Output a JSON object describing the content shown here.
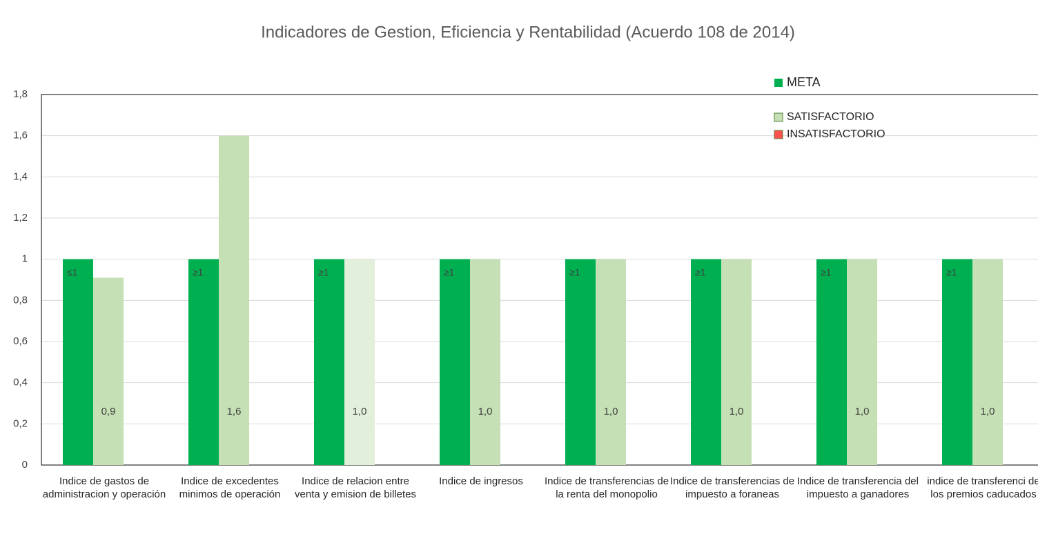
{
  "chart_data": {
    "type": "bar",
    "title": "Indicadores de Gestion, Eficiencia y Rentabilidad (Acuerdo 108 de 2014)",
    "categories": [
      "Indice de gastos de administracion y operación",
      "Indice de excedentes minimos de operación",
      "Indice de relacion entre venta y emision de billetes",
      "Indice de ingresos",
      "Indice de transferencias de la renta del monopolio",
      "Indice de transferencias de impuesto a foraneas",
      "Indice de transferencia del impuesto a ganadores",
      "indice de transferenci de los premios caducados"
    ],
    "series": [
      {
        "name": "META",
        "color": "#00b050",
        "values": [
          1,
          1,
          1,
          1,
          1,
          1,
          1,
          1
        ],
        "value_labels": [
          "≤1",
          "≥1",
          "≥1",
          "≥1",
          "≥1",
          "≥1",
          "≥1",
          "≥1"
        ]
      },
      {
        "name": "SATISFACTORIO",
        "color": "#c5e0b4",
        "colors": [
          "#c5e0b4",
          "#c5e0b4",
          "#e2efda",
          "#c5e0b4",
          "#c5e0b4",
          "#c5e0b4",
          "#c5e0b4",
          "#c5e0b4"
        ],
        "values": [
          0.91,
          1.6,
          1.0,
          1.0,
          1.0,
          1.0,
          1.0,
          1.0
        ],
        "value_labels": [
          "0,9",
          "1,6",
          "1,0",
          "1,0",
          "1,0",
          "1,0",
          "1,0",
          "1,0"
        ]
      },
      {
        "name": "INSATISFACTORIO",
        "color": "#ff5050",
        "values": [
          null,
          null,
          null,
          null,
          null,
          null,
          null,
          null
        ]
      }
    ],
    "ylim": [
      0,
      1.8
    ],
    "yticks": [
      0,
      {
        "value": 0.2,
        "label": "0,2"
      },
      {
        "value": 0.4,
        "label": "0,4"
      },
      {
        "value": 0.6,
        "label": "0,6"
      },
      {
        "value": 0.8,
        "label": "0,8"
      },
      1,
      {
        "value": 1.2,
        "label": "1,2"
      },
      {
        "value": 1.4,
        "label": "1,4"
      },
      {
        "value": 1.6,
        "label": "1,6"
      },
      {
        "value": 1.8,
        "label": "1,8"
      }
    ],
    "grid": true
  }
}
